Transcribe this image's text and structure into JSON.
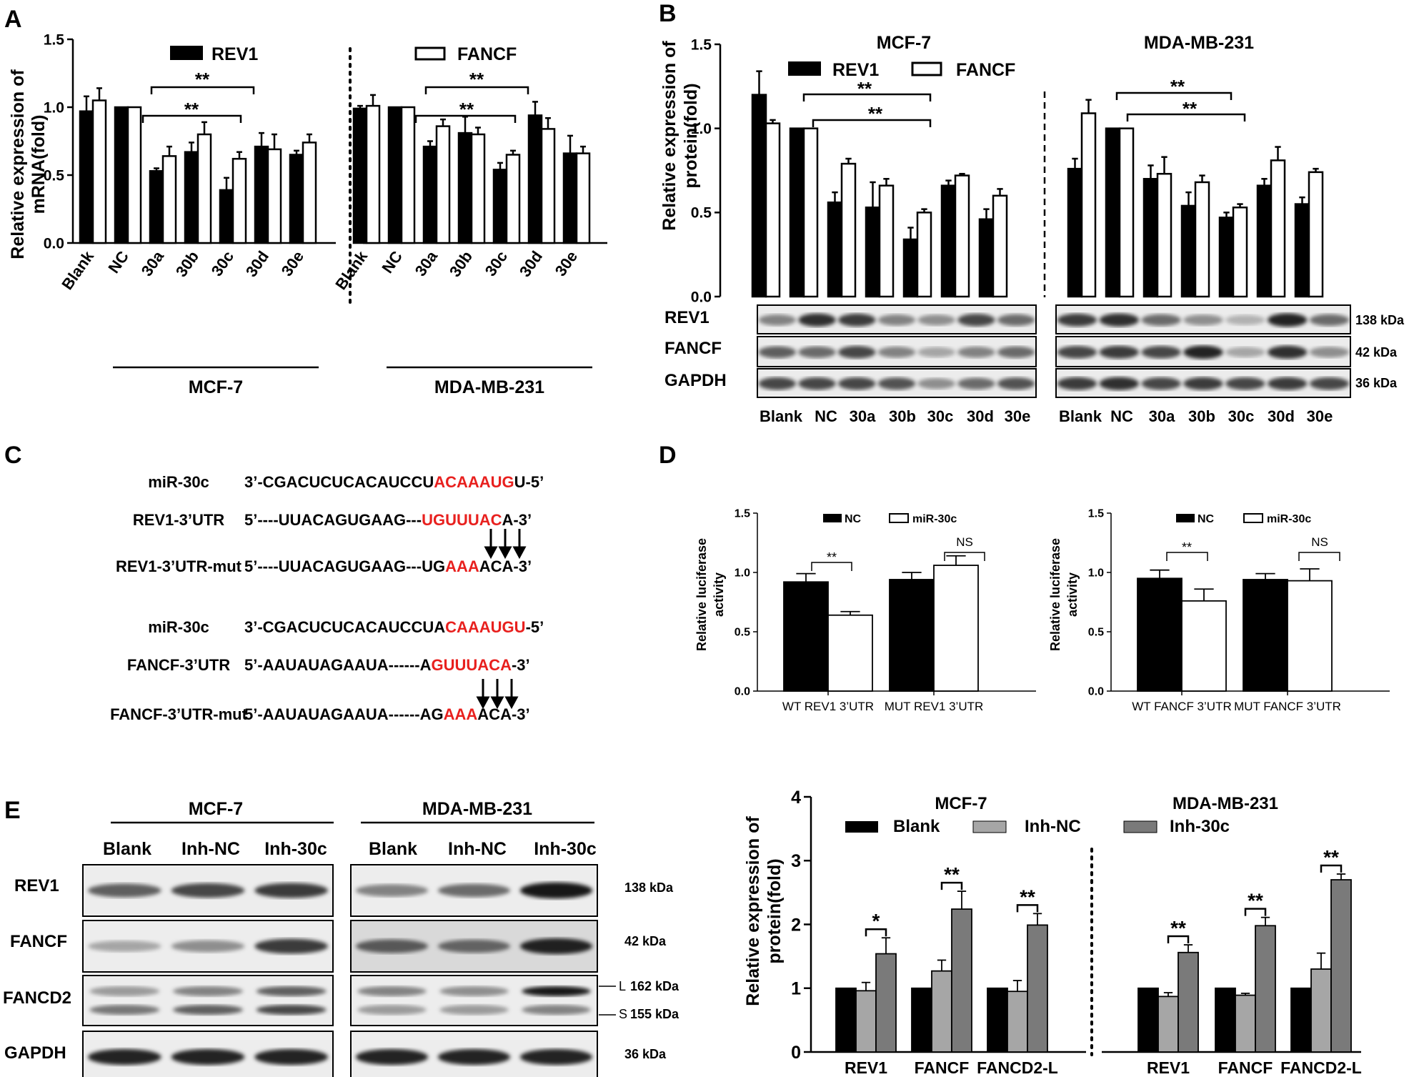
{
  "panels": {
    "A": {
      "label": "A",
      "ylabel_line1": "Relative expression of",
      "ylabel_line2": "mRNA(fold)",
      "yticks": [
        "0.0",
        "0.5",
        "1.0",
        "1.5"
      ],
      "legend_left": "REV1",
      "legend_right": "FANCF",
      "sig_labels": [
        "**",
        "**",
        "**",
        "**"
      ],
      "categories": [
        "Blank",
        "NC",
        "30a",
        "30b",
        "30c",
        "30d",
        "30e"
      ],
      "groups": [
        "MCF-7",
        "MDA-MB-231"
      ]
    },
    "B": {
      "label": "B",
      "ylabel_line1": "Relative expression of",
      "ylabel_line2": "protein(fold)",
      "yticks": [
        "0.0",
        "0.5",
        "1.0",
        "1.5"
      ],
      "titles": [
        "MCF-7",
        "MDA-MB-231"
      ],
      "legend": [
        "REV1",
        "FANCF"
      ],
      "sig_labels": [
        "**",
        "**",
        "**",
        "**"
      ],
      "blot_rows": [
        "REV1",
        "FANCF",
        "GAPDH"
      ],
      "sizes": [
        "138 kDa",
        "42 kDa",
        "36 kDa"
      ],
      "lane_labels": [
        "Blank",
        "NC",
        "30a",
        "30b",
        "30c",
        "30d",
        "30e"
      ]
    },
    "C": {
      "label": "C",
      "rows": [
        {
          "name": "miR-30c",
          "seq_pre": "3’-CGACUCUCACAUCCU",
          "seq_red": "ACAAAUG",
          "seq_post": "U-5’"
        },
        {
          "name": "REV1-3’UTR",
          "seq_pre": "5’----UUACAGUGAAG---",
          "seq_red": "UGUUUAC",
          "seq_post": "A-3’"
        },
        {
          "name": "REV1-3’UTR-mut",
          "seq_pre": "5’----UUACAGUGAAG---UG",
          "seq_red": "AAA",
          "seq_post": "ACA-3’"
        },
        {
          "name": "miR-30c",
          "seq_pre": "3’-CGACUCUCACAUCCUA",
          "seq_red": "CAAAUGU",
          "seq_post": "-5’"
        },
        {
          "name": "FANCF-3’UTR",
          "seq_pre": "5’-AAUAUAGAAUA------A",
          "seq_red": "GUUUACA",
          "seq_post": "-3’"
        },
        {
          "name": "FANCF-3’UTR-mut",
          "seq_pre": "5’-AAUAUAGAAUA------AG",
          "seq_red": "AAA",
          "seq_post": "ACA-3’"
        }
      ]
    },
    "D": {
      "label": "D",
      "ylabel_line1": "Relative  luciferase",
      "ylabel_line2": "activity",
      "yticks": [
        "0.0",
        "0.5",
        "1.0",
        "1.5"
      ],
      "legend": [
        "NC",
        "miR-30c"
      ],
      "left_sig": [
        "**",
        "NS"
      ],
      "right_sig": [
        "**",
        "NS"
      ]
    },
    "E": {
      "label": "E",
      "blot_groups": [
        "MCF-7",
        "MDA-MB-231"
      ],
      "lane_labels": [
        "Blank",
        "Inh-NC",
        "Inh-30c"
      ],
      "blot_rows": [
        "REV1",
        "FANCF",
        "FANCD2",
        "GAPDH"
      ],
      "sizes": [
        "138 kDa",
        "42 kDa",
        "162 kDa",
        "155 kDa",
        "36 kDa"
      ],
      "band_marks": [
        "L",
        "S"
      ],
      "ylabel_line1": "Relative expression of",
      "ylabel_line2": "protein(fold)",
      "yticks": [
        "0",
        "1",
        "2",
        "3",
        "4"
      ],
      "legend": [
        "Blank",
        "Inh-NC",
        "Inh-30c"
      ],
      "sig_labels": [
        "*",
        "**",
        "**",
        "**",
        "**",
        "**"
      ]
    }
  },
  "colors": {
    "black": "#000000",
    "white": "#ffffff",
    "red": "#e8201e",
    "lightgray": "#a6a6a6",
    "darkgray": "#7a7a7a"
  },
  "chart_data": [
    {
      "type": "bar",
      "panel": "A",
      "title": "",
      "ylabel": "Relative expression of mRNA(fold)",
      "ylim": [
        0,
        1.5
      ],
      "groups": [
        {
          "name": "MCF-7",
          "categories": [
            "Blank",
            "NC",
            "30a",
            "30b",
            "30c",
            "30d",
            "30e"
          ],
          "series": [
            {
              "name": "REV1",
              "values": [
                0.97,
                1.0,
                0.53,
                0.67,
                0.39,
                0.71,
                0.65
              ],
              "errors": [
                0.11,
                0.0,
                0.02,
                0.07,
                0.09,
                0.1,
                0.03
              ]
            },
            {
              "name": "FANCF",
              "values": [
                1.05,
                1.0,
                0.64,
                0.8,
                0.62,
                0.69,
                0.74
              ],
              "errors": [
                0.09,
                0.0,
                0.07,
                0.09,
                0.05,
                0.11,
                0.06
              ]
            }
          ]
        },
        {
          "name": "MDA-MB-231",
          "categories": [
            "Blank",
            "NC",
            "30a",
            "30b",
            "30c",
            "30d",
            "30e"
          ],
          "series": [
            {
              "name": "REV1",
              "values": [
                0.99,
                1.0,
                0.71,
                0.81,
                0.54,
                0.94,
                0.66
              ],
              "errors": [
                0.02,
                0.0,
                0.04,
                0.12,
                0.05,
                0.1,
                0.13
              ]
            },
            {
              "name": "FANCF",
              "values": [
                1.01,
                1.0,
                0.86,
                0.8,
                0.65,
                0.84,
                0.66
              ],
              "errors": [
                0.08,
                0.0,
                0.05,
                0.05,
                0.03,
                0.08,
                0.05
              ]
            }
          ]
        }
      ]
    },
    {
      "type": "bar",
      "panel": "B",
      "ylabel": "Relative expression of protein(fold)",
      "ylim": [
        0,
        1.5
      ],
      "groups": [
        {
          "name": "MCF-7",
          "categories": [
            "Blank",
            "NC",
            "30a",
            "30b",
            "30c",
            "30d",
            "30e"
          ],
          "series": [
            {
              "name": "REV1",
              "values": [
                1.2,
                1.0,
                0.56,
                0.53,
                0.34,
                0.66,
                0.46
              ],
              "errors": [
                0.14,
                0.0,
                0.06,
                0.15,
                0.07,
                0.03,
                0.06
              ]
            },
            {
              "name": "FANCF",
              "values": [
                1.03,
                1.0,
                0.79,
                0.66,
                0.5,
                0.72,
                0.6
              ],
              "errors": [
                0.02,
                0.0,
                0.03,
                0.04,
                0.02,
                0.01,
                0.04
              ]
            }
          ]
        },
        {
          "name": "MDA-MB-231",
          "categories": [
            "Blank",
            "NC",
            "30a",
            "30b",
            "30c",
            "30d",
            "30e"
          ],
          "series": [
            {
              "name": "REV1",
              "values": [
                0.76,
                1.0,
                0.7,
                0.54,
                0.47,
                0.66,
                0.55
              ],
              "errors": [
                0.06,
                0.0,
                0.08,
                0.08,
                0.03,
                0.04,
                0.04
              ]
            },
            {
              "name": "FANCF",
              "values": [
                1.09,
                1.0,
                0.73,
                0.68,
                0.53,
                0.81,
                0.74
              ],
              "errors": [
                0.08,
                0.0,
                0.1,
                0.04,
                0.02,
                0.08,
                0.02
              ]
            }
          ]
        }
      ]
    },
    {
      "type": "bar",
      "panel": "D-left",
      "ylabel": "Relative luciferase activity",
      "ylim": [
        0,
        1.5
      ],
      "categories": [
        "WT REV1 3’UTR",
        "MUT REV1 3’UTR"
      ],
      "series": [
        {
          "name": "NC",
          "values": [
            0.92,
            0.94
          ],
          "errors": [
            0.07,
            0.06
          ]
        },
        {
          "name": "miR-30c",
          "values": [
            0.64,
            1.06
          ],
          "errors": [
            0.03,
            0.08
          ]
        }
      ]
    },
    {
      "type": "bar",
      "panel": "D-right",
      "ylabel": "Relative luciferase activity",
      "ylim": [
        0,
        1.5
      ],
      "categories": [
        "WT FANCF 3’UTR",
        "MUT FANCF 3’UTR"
      ],
      "series": [
        {
          "name": "NC",
          "values": [
            0.95,
            0.94
          ],
          "errors": [
            0.07,
            0.05
          ]
        },
        {
          "name": "miR-30c",
          "values": [
            0.76,
            0.93
          ],
          "errors": [
            0.1,
            0.1
          ]
        }
      ]
    },
    {
      "type": "bar",
      "panel": "E",
      "ylabel": "Relative expression of protein(fold)",
      "ylim": [
        0,
        4
      ],
      "groups": [
        {
          "name": "MCF-7",
          "categories": [
            "REV1",
            "FANCF",
            "FANCD2-L"
          ],
          "series": [
            {
              "name": "Blank",
              "values": [
                1.0,
                1.0,
                1.0
              ],
              "errors": [
                0,
                0,
                0
              ]
            },
            {
              "name": "Inh-NC",
              "values": [
                0.96,
                1.27,
                0.95
              ],
              "errors": [
                0.13,
                0.17,
                0.17
              ]
            },
            {
              "name": "Inh-30c",
              "values": [
                1.54,
                2.24,
                1.99
              ],
              "errors": [
                0.25,
                0.28,
                0.18
              ]
            }
          ]
        },
        {
          "name": "MDA-MB-231",
          "categories": [
            "REV1",
            "FANCF",
            "FANCD2-L"
          ],
          "series": [
            {
              "name": "Blank",
              "values": [
                1.0,
                1.0,
                1.0
              ],
              "errors": [
                0,
                0,
                0
              ]
            },
            {
              "name": "Inh-NC",
              "values": [
                0.87,
                0.89,
                1.3
              ],
              "errors": [
                0.06,
                0.03,
                0.25
              ]
            },
            {
              "name": "Inh-30c",
              "values": [
                1.56,
                1.98,
                2.7
              ],
              "errors": [
                0.12,
                0.13,
                0.09
              ]
            }
          ]
        }
      ]
    }
  ]
}
